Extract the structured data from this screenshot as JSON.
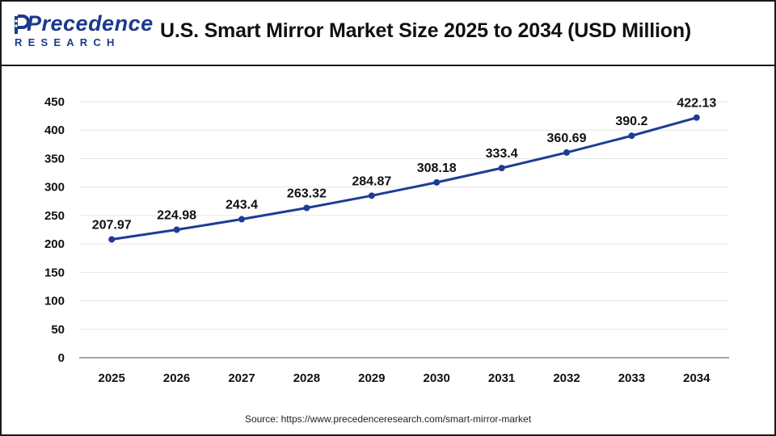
{
  "header": {
    "logo_word": "Precedence",
    "logo_sub": "RESEARCH",
    "title": "U.S. Smart Mirror Market Size 2025 to 2034 (USD Million)"
  },
  "source": "Source: https://www.precedenceresearch.com/smart-mirror-market",
  "colors": {
    "line": "#1f3c94",
    "grid": "#e6e6e6",
    "axis": "#555555",
    "logo": "#1c3a8c"
  },
  "chart_data": {
    "type": "line",
    "title": "U.S. Smart Mirror Market Size 2025 to 2034 (USD Million)",
    "xlabel": "",
    "ylabel": "",
    "categories": [
      "2025",
      "2026",
      "2027",
      "2028",
      "2029",
      "2030",
      "2031",
      "2032",
      "2033",
      "2034"
    ],
    "series": [
      {
        "name": "Market Size",
        "values": [
          207.97,
          224.98,
          243.4,
          263.32,
          284.87,
          308.18,
          333.4,
          360.69,
          390.2,
          422.13
        ],
        "labels": [
          "207.97",
          "224.98",
          "243.4",
          "263.32",
          "284.87",
          "308.18",
          "333.4",
          "360.69",
          "390.2",
          "422.13"
        ]
      }
    ],
    "ylim": [
      0,
      450
    ],
    "yticks": [
      0,
      50,
      100,
      150,
      200,
      250,
      300,
      350,
      400,
      450
    ],
    "grid": true,
    "legend": "none"
  }
}
